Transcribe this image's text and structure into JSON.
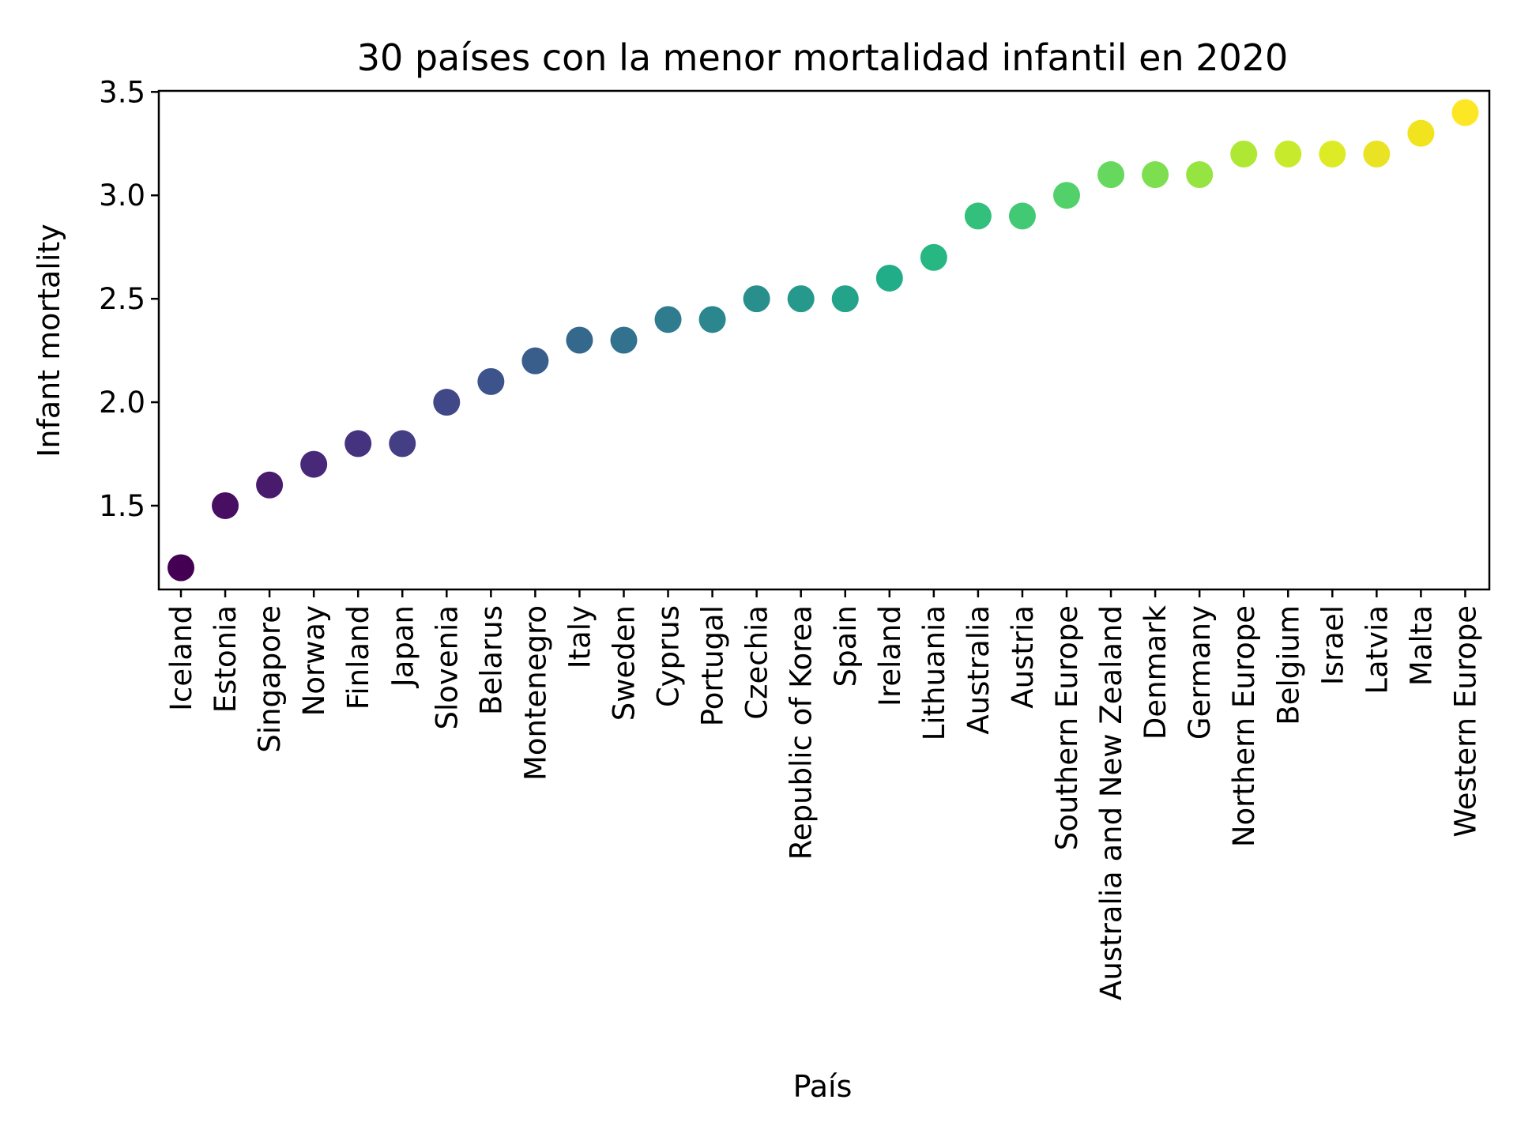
{
  "chart_data": {
    "type": "scatter",
    "title": "30 países con la menor mortalidad infantil en 2020",
    "xlabel": "País",
    "ylabel": "Infant mortality",
    "categories": [
      "Iceland",
      "Estonia",
      "Singapore",
      "Norway",
      "Finland",
      "Japan",
      "Slovenia",
      "Belarus",
      "Montenegro",
      "Italy",
      "Sweden",
      "Cyprus",
      "Portugal",
      "Czechia",
      "Republic of Korea",
      "Spain",
      "Ireland",
      "Lithuania",
      "Australia",
      "Austria",
      "Southern Europe",
      "Australia and New Zealand",
      "Denmark",
      "Germany",
      "Northern Europe",
      "Belgium",
      "Israel",
      "Latvia",
      "Malta",
      "Western Europe"
    ],
    "values": [
      1.2,
      1.5,
      1.6,
      1.7,
      1.8,
      1.8,
      2.0,
      2.1,
      2.2,
      2.3,
      2.3,
      2.4,
      2.4,
      2.5,
      2.5,
      2.5,
      2.6,
      2.7,
      2.9,
      2.9,
      3.0,
      3.1,
      3.1,
      3.1,
      3.2,
      3.2,
      3.2,
      3.2,
      3.3,
      3.4
    ],
    "ylim": [
      1.095,
      3.505
    ],
    "yticks": [
      "1.5",
      "2.0",
      "2.5",
      "3.0",
      "3.5"
    ],
    "grid": false,
    "legend": "none",
    "colormap": "viridis",
    "colors": [
      "#440154",
      "#470e61",
      "#481b6d",
      "#482878",
      "#46337f",
      "#443e85",
      "#414888",
      "#3d538b",
      "#3a5e8c",
      "#35688d",
      "#32728e",
      "#2e7c8e",
      "#2b868e",
      "#288f8d",
      "#26998c",
      "#22a38a",
      "#21ad87",
      "#26b782",
      "#32c07c",
      "#41c974",
      "#52d16a",
      "#66d85e",
      "#7ddf50",
      "#96e442",
      "#aee834",
      "#c7eb2c",
      "#dceb25",
      "#eae323",
      "#f1e41e",
      "#fde725"
    ]
  }
}
